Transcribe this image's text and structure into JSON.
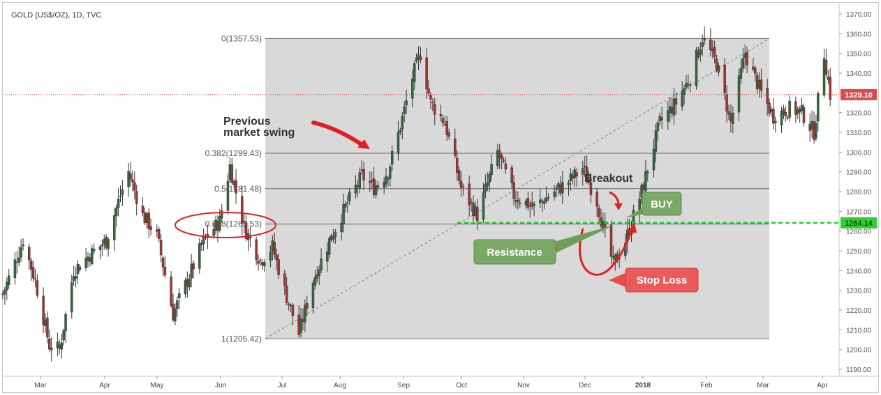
{
  "symbol_label": "GOLD (US$/OZ), 1D, TVC",
  "colors": {
    "up": "#2f6b3e",
    "down": "#a8322d",
    "fib_zone": "#d9d9d9",
    "support": "#1bd41b",
    "price_line": "#cc3333",
    "buy": "#6e9e5a",
    "resistance": "#6e9e5a",
    "stop_loss": "#e84c4c"
  },
  "chart_data": {
    "type": "candlestick",
    "title": "GOLD (US$/OZ), 1D, TVC",
    "ylim": [
      1185,
      1375
    ],
    "y_ticks": [
      1190,
      1200,
      1210,
      1220,
      1230,
      1240,
      1250,
      1260,
      1270,
      1280,
      1290,
      1300,
      1310,
      1320,
      1330,
      1340,
      1350,
      1360,
      1370
    ],
    "x_ticks": [
      "Mar",
      "Apr",
      "May",
      "Jun",
      "Jul",
      "Aug",
      "Sep",
      "Oct",
      "Nov",
      "Dec",
      "2018",
      "Feb",
      "Mar",
      "Apr"
    ],
    "current_price": "1329.10",
    "current_price_value": 1329.1,
    "support_price": "1264.14",
    "support_price_value": 1264.14,
    "fib_levels": [
      {
        "label": "0(1357.53)",
        "value": 1357.53
      },
      {
        "label": "0.382(1299.43)",
        "value": 1299.43
      },
      {
        "label": "0.5(1281.48)",
        "value": 1281.48
      },
      {
        "label": "0.618(1263.53)",
        "value": 1263.53
      },
      {
        "label": "1(1205.42)",
        "value": 1205.42
      }
    ],
    "close_path": [
      [
        "2017-02-14",
        1228
      ],
      [
        "2017-02-24",
        1255
      ],
      [
        "2017-03-02",
        1235
      ],
      [
        "2017-03-09",
        1202
      ],
      [
        "2017-03-14",
        1200
      ],
      [
        "2017-03-21",
        1240
      ],
      [
        "2017-03-29",
        1248
      ],
      [
        "2017-04-06",
        1255
      ],
      [
        "2017-04-12",
        1275
      ],
      [
        "2017-04-17",
        1290
      ],
      [
        "2017-04-24",
        1268
      ],
      [
        "2017-05-01",
        1258
      ],
      [
        "2017-05-09",
        1218
      ],
      [
        "2017-05-16",
        1235
      ],
      [
        "2017-05-24",
        1255
      ],
      [
        "2017-06-01",
        1265
      ],
      [
        "2017-06-06",
        1293
      ],
      [
        "2017-06-13",
        1262
      ],
      [
        "2017-06-21",
        1245
      ],
      [
        "2017-06-27",
        1252
      ],
      [
        "2017-07-03",
        1230
      ],
      [
        "2017-07-10",
        1208
      ],
      [
        "2017-07-17",
        1235
      ],
      [
        "2017-07-25",
        1255
      ],
      [
        "2017-08-01",
        1270
      ],
      [
        "2017-08-10",
        1288
      ],
      [
        "2017-08-16",
        1282
      ],
      [
        "2017-08-23",
        1290
      ],
      [
        "2017-08-29",
        1313
      ],
      [
        "2017-09-04",
        1338
      ],
      [
        "2017-09-08",
        1350
      ],
      [
        "2017-09-13",
        1325
      ],
      [
        "2017-09-20",
        1315
      ],
      [
        "2017-09-28",
        1282
      ],
      [
        "2017-10-06",
        1268
      ],
      [
        "2017-10-16",
        1300
      ],
      [
        "2017-10-24",
        1278
      ],
      [
        "2017-11-03",
        1272
      ],
      [
        "2017-11-13",
        1280
      ],
      [
        "2017-11-20",
        1285
      ],
      [
        "2017-11-27",
        1292
      ],
      [
        "2017-12-04",
        1275
      ],
      [
        "2017-12-07",
        1262
      ],
      [
        "2017-12-12",
        1243
      ],
      [
        "2017-12-18",
        1255
      ],
      [
        "2017-12-26",
        1280
      ],
      [
        "2018-01-04",
        1315
      ],
      [
        "2018-01-12",
        1325
      ],
      [
        "2018-01-19",
        1338
      ],
      [
        "2018-01-25",
        1358
      ],
      [
        "2018-02-01",
        1345
      ],
      [
        "2018-02-08",
        1315
      ],
      [
        "2018-02-15",
        1350
      ],
      [
        "2018-02-23",
        1330
      ],
      [
        "2018-03-01",
        1318
      ],
      [
        "2018-03-09",
        1322
      ],
      [
        "2018-03-15",
        1320
      ],
      [
        "2018-03-21",
        1310
      ],
      [
        "2018-03-26",
        1350
      ],
      [
        "2018-03-29",
        1329.1
      ]
    ]
  },
  "annotations": {
    "previous_swing_line1": "Previous",
    "previous_swing_line2": "market swing",
    "breakout": "Breakout",
    "buy": "BUY",
    "resistance": "Resistance",
    "stop_loss": "Stop Loss"
  }
}
